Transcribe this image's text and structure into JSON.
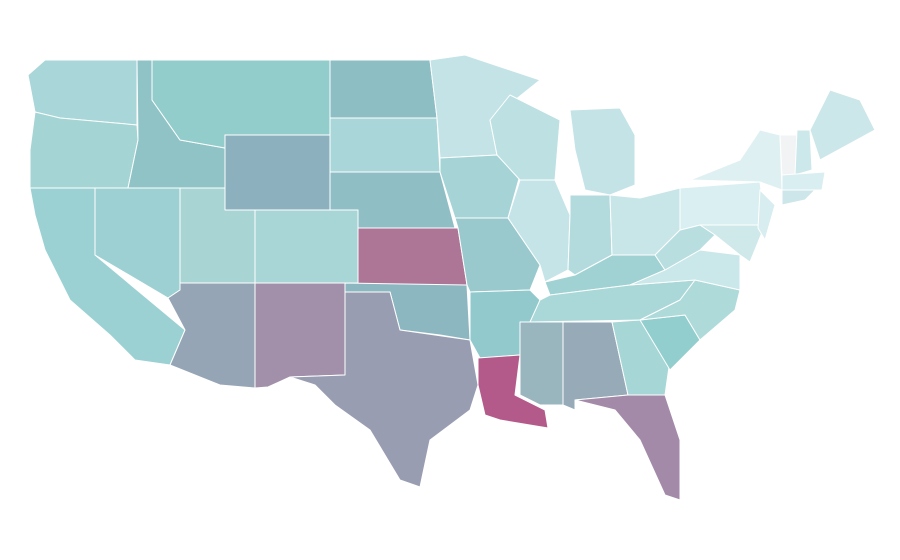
{
  "map": {
    "regions": [
      {
        "color": "#a9d6d8"
      },
      {
        "color": "#a4d4d4"
      },
      {
        "color": "#9bd1d3"
      },
      {
        "color": "#9dd0d2"
      },
      {
        "color": "#8fc3c6"
      },
      {
        "color": "#92cccb"
      },
      {
        "color": "#8db0bf"
      },
      {
        "color": "#a8d4d4"
      },
      {
        "color": "#a8d6d6"
      },
      {
        "color": "#95a5b5"
      },
      {
        "color": "#a290ab"
      },
      {
        "color": "#8dbec4"
      },
      {
        "color": "#a9d6d8"
      },
      {
        "color": "#8fbfc5"
      },
      {
        "color": "#ad7697"
      },
      {
        "color": "#8db7c0"
      },
      {
        "color": "#999db2"
      },
      {
        "color": "#c3e3e6"
      },
      {
        "color": "#a6d4d6"
      },
      {
        "color": "#99c9cc"
      },
      {
        "color": "#92c9cd"
      },
      {
        "color": "#b45a8a"
      },
      {
        "color": "#bde0e2"
      },
      {
        "color": "#c5e4e7"
      },
      {
        "color": "#c3e3e6"
      },
      {
        "color": "#b3dbdd"
      },
      {
        "color": "#c8e6e8"
      },
      {
        "color": "#a0d2d3"
      },
      {
        "color": "#aad8d8"
      },
      {
        "color": "#99b6bf"
      },
      {
        "color": "#96aab8"
      },
      {
        "color": "#a6d6d6"
      },
      {
        "color": "#a38aa8"
      },
      {
        "color": "#92cece"
      },
      {
        "color": "#afdada"
      },
      {
        "color": "#cae7e9"
      },
      {
        "color": "#b8dee0"
      },
      {
        "color": "#d9eff1"
      },
      {
        "color": "#dff0f3"
      },
      {
        "color": "#cfe8ea"
      },
      {
        "color": "#d7edef"
      },
      {
        "color": "#f1f3f4"
      },
      {
        "color": "#cde8ea"
      },
      {
        "color": "#cce7e9"
      },
      {
        "color": "#d8eef0"
      },
      {
        "color": "#cce6e9"
      }
    ]
  }
}
